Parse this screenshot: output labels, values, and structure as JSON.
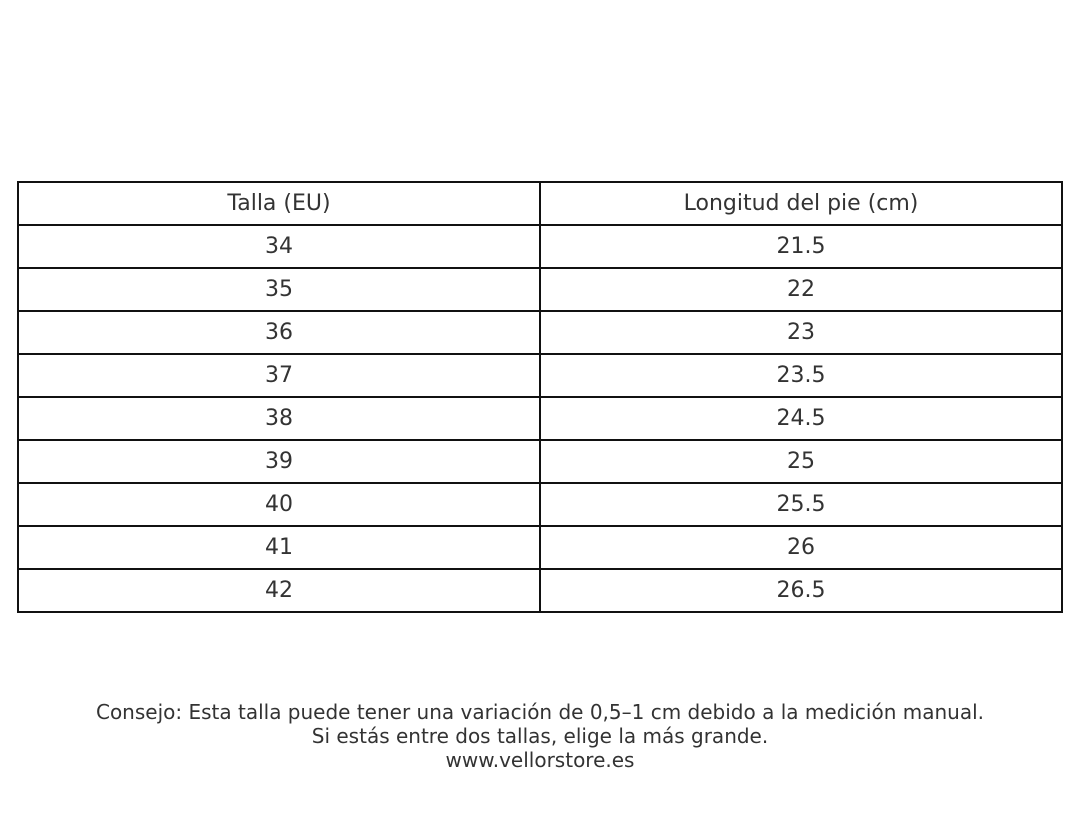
{
  "table": {
    "header": [
      "Talla (EU)",
      "Longitud del pie (cm)"
    ],
    "rows": [
      [
        34,
        21.5
      ],
      [
        35,
        22
      ],
      [
        36,
        23
      ],
      [
        37,
        23.5
      ],
      [
        38,
        24.5
      ],
      [
        39,
        25
      ],
      [
        40,
        25.5
      ],
      [
        41,
        26
      ],
      [
        42,
        26.5
      ]
    ]
  },
  "footer": {
    "lines": [
      "Consejo: Esta talla puede tener una variación de 0,5–1 cm debido a la medición manual.",
      "Si estás entre dos tallas, elige la más grande.",
      "www.vellorstore.es"
    ]
  }
}
